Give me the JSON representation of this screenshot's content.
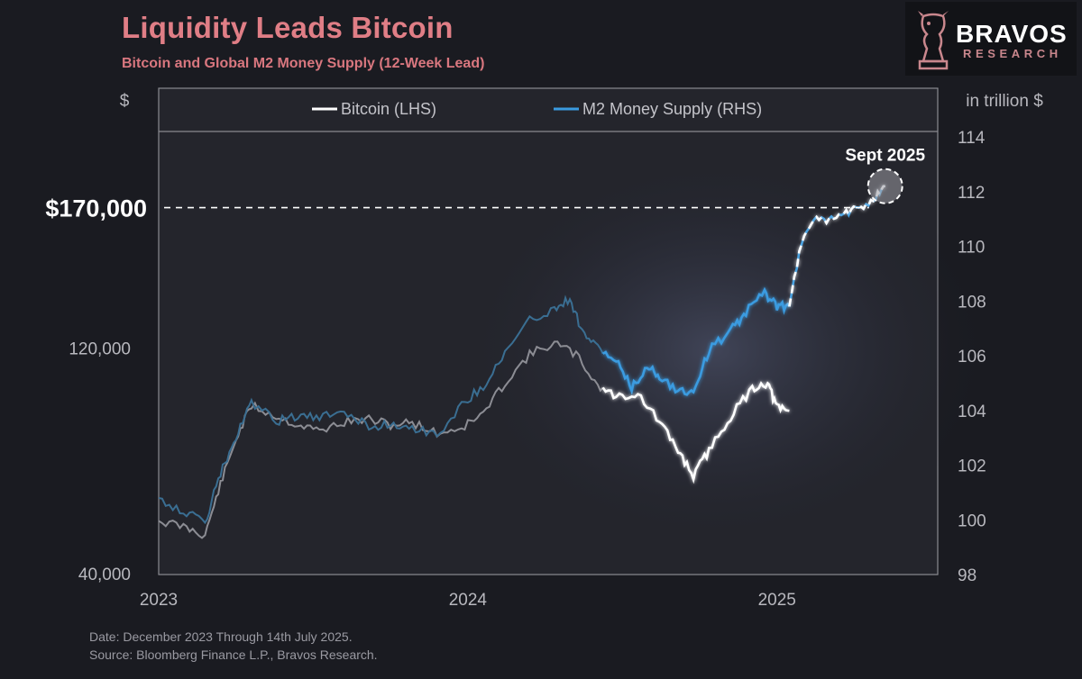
{
  "header": {
    "title": "Liquidity Leads Bitcoin",
    "subtitle": "Bitcoin and Global M2 Money Supply (12-Week Lead)"
  },
  "logo": {
    "name": "BRAVOS",
    "sub": "RESEARCH",
    "icon": "bull-knight-icon"
  },
  "footer": {
    "date_note": "Date: December 2023 Through 14th July 2025.",
    "source_note": "Source: Bloomberg Finance L.P., Bravos Research."
  },
  "colors": {
    "background": "#1a1b21",
    "title": "#e07e86",
    "bitcoin": "#ffffff",
    "m2": "#3a9be0"
  },
  "chart_data": {
    "type": "line",
    "title": "Liquidity Leads Bitcoin",
    "subtitle": "Bitcoin and Global M2 Money Supply (12-Week Lead)",
    "left_axis_unit": "$",
    "right_axis_unit": "in trillion $",
    "x_tick_labels": [
      "2023",
      "2024",
      "2025"
    ],
    "x_ticks_year": [
      2023.0,
      2024.0,
      2025.0
    ],
    "xlim": [
      2023.0,
      2025.52
    ],
    "left_ticks": [
      {
        "value": 40000,
        "label": "40,000"
      },
      {
        "value": 120000,
        "label": "120,000"
      }
    ],
    "left_ylim": [
      40000,
      197000
    ],
    "right_ticks": [
      98,
      100,
      102,
      104,
      106,
      108,
      110,
      112,
      114
    ],
    "right_ylim": [
      98,
      114.2
    ],
    "legend": [
      "Bitcoin (LHS)",
      "M2 Money Supply (RHS)"
    ],
    "legend_position": "top-center",
    "annotation": {
      "label": "$170,000",
      "value": 170000,
      "target_label": "Sept 2025",
      "target_year": 2025.35,
      "target_m2": 112.2
    },
    "series": [
      {
        "name": "Bitcoin (LHS)",
        "axis": "left",
        "x": [
          2023.0,
          2023.08,
          2023.15,
          2023.2,
          2023.25,
          2023.3,
          2023.38,
          2023.45,
          2023.52,
          2023.6,
          2023.68,
          2023.75,
          2023.82,
          2023.9,
          2023.98,
          2024.05,
          2024.12,
          2024.2,
          2024.28,
          2024.35,
          2024.42,
          2024.48,
          2024.55,
          2024.62,
          2024.68,
          2024.73,
          2024.78,
          2024.85,
          2024.92,
          2024.97,
          2025.0,
          2025.04
        ],
        "values": [
          59000,
          57000,
          54000,
          72000,
          88000,
          100000,
          96000,
          93000,
          91000,
          94000,
          95000,
          93000,
          94000,
          90000,
          92000,
          97000,
          108000,
          118000,
          122000,
          118000,
          107000,
          103000,
          104000,
          94000,
          84000,
          75000,
          84000,
          96000,
          106000,
          108000,
          99000,
          98000
        ]
      },
      {
        "name": "M2 Money Supply (RHS)",
        "axis": "right",
        "x": [
          2023.0,
          2023.08,
          2023.15,
          2023.2,
          2023.25,
          2023.3,
          2023.38,
          2023.45,
          2023.52,
          2023.6,
          2023.68,
          2023.75,
          2023.82,
          2023.9,
          2023.98,
          2024.05,
          2024.12,
          2024.2,
          2024.28,
          2024.33,
          2024.37,
          2024.42,
          2024.48,
          2024.53,
          2024.58,
          2024.62,
          2024.68,
          2024.73,
          2024.78,
          2024.85,
          2024.9,
          2024.96,
          2025.0,
          2025.04
        ],
        "values": [
          100.8,
          100.3,
          99.9,
          101.7,
          103.0,
          104.3,
          103.6,
          103.8,
          103.7,
          104.0,
          103.4,
          103.5,
          103.4,
          103.1,
          104.2,
          104.9,
          106.1,
          107.3,
          107.7,
          108.1,
          106.9,
          106.3,
          105.8,
          104.8,
          105.6,
          105.3,
          104.7,
          104.7,
          106.2,
          106.9,
          107.6,
          108.3,
          107.8,
          107.8
        ]
      },
      {
        "name": "M2 Money Supply (RHS) projection",
        "axis": "right",
        "x": [
          2025.04,
          2025.08,
          2025.12,
          2025.16,
          2025.2,
          2025.24,
          2025.28,
          2025.32,
          2025.35
        ],
        "values": [
          107.8,
          110.2,
          111.0,
          110.9,
          111.1,
          111.3,
          111.5,
          111.8,
          112.2
        ]
      }
    ]
  }
}
